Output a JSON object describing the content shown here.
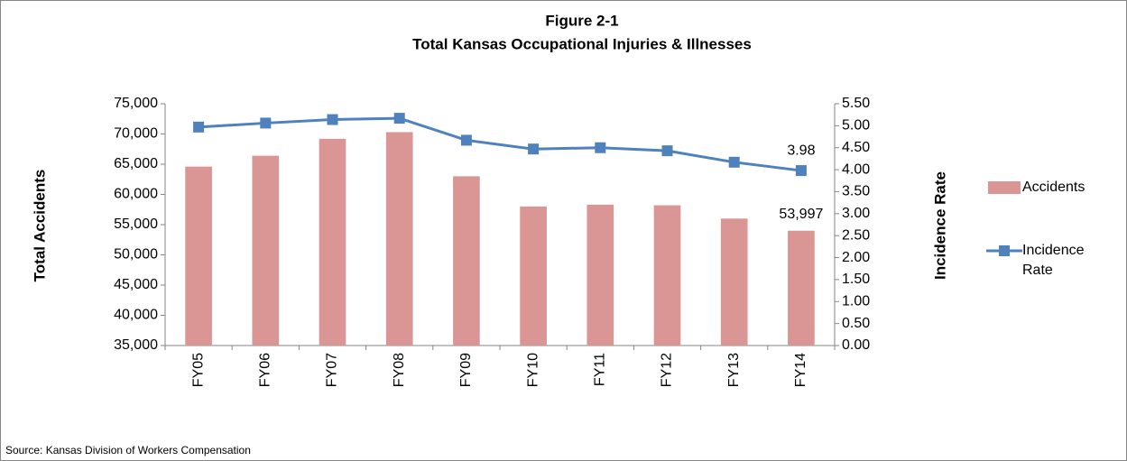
{
  "chart_data": {
    "type": "bar_line",
    "title": "Figure 2-1",
    "subtitle": "Total Kansas Occupational Injuries & Illnesses",
    "y_label": "Total Accidents",
    "y2_label": "Incidence Rate",
    "source": "Source: Kansas Division of Workers Compensation",
    "categories": [
      "FY05",
      "FY06",
      "FY07",
      "FY08",
      "FY09",
      "FY10",
      "FY11",
      "FY12",
      "FY13",
      "FY14"
    ],
    "series": [
      {
        "name": "Accidents",
        "type": "bar",
        "color": "#d99694",
        "values": [
          64600,
          66400,
          69200,
          70300,
          63000,
          58000,
          58300,
          58200,
          56000,
          53997
        ],
        "value_labels": [
          null,
          null,
          null,
          null,
          null,
          null,
          null,
          null,
          null,
          "53,997"
        ]
      },
      {
        "name": "Incidence Rate",
        "type": "line",
        "axis": "y2",
        "color": "#4f81bd",
        "values": [
          4.97,
          5.06,
          5.14,
          5.17,
          4.67,
          4.47,
          4.5,
          4.43,
          4.17,
          3.98
        ],
        "value_labels": [
          null,
          null,
          null,
          null,
          null,
          null,
          null,
          null,
          null,
          "3.98"
        ]
      }
    ],
    "ylim": [
      35000,
      75000
    ],
    "yticks": [
      {
        "value": 35000,
        "label": "35,000"
      },
      {
        "value": 40000,
        "label": "40,000"
      },
      {
        "value": 45000,
        "label": "45,000"
      },
      {
        "value": 50000,
        "label": "50,000"
      },
      {
        "value": 55000,
        "label": "55,000"
      },
      {
        "value": 60000,
        "label": "60,000"
      },
      {
        "value": 65000,
        "label": "65,000"
      },
      {
        "value": 70000,
        "label": "70,000"
      },
      {
        "value": 75000,
        "label": "75,000"
      }
    ],
    "y2lim": [
      0,
      5.5
    ],
    "y2ticks": [
      {
        "value": 0,
        "label": "0.00"
      },
      {
        "value": 0.5,
        "label": "0.50"
      },
      {
        "value": 1,
        "label": "1.00"
      },
      {
        "value": 1.5,
        "label": "1.50"
      },
      {
        "value": 2,
        "label": "2.00"
      },
      {
        "value": 2.5,
        "label": "2.50"
      },
      {
        "value": 3,
        "label": "3.00"
      },
      {
        "value": 3.5,
        "label": "3.50"
      },
      {
        "value": 4,
        "label": "4.00"
      },
      {
        "value": 4.5,
        "label": "4.50"
      },
      {
        "value": 5,
        "label": "5.00"
      },
      {
        "value": 5.5,
        "label": "5.50"
      }
    ],
    "grid": false,
    "legend": "right"
  }
}
